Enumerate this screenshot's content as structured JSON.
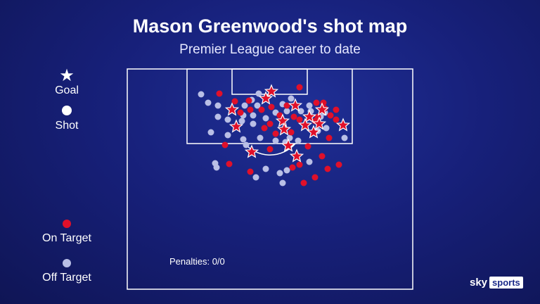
{
  "title": "Mason Greenwood's shot map",
  "subtitle": "Premier League career to date",
  "legend": {
    "goal_label": "Goal",
    "shot_label": "Shot",
    "on_target_label": "On Target",
    "off_target_label": "Off Target"
  },
  "penalties_text": "Penalties: 0/0",
  "brand": {
    "sky": "sky",
    "sports": "sports"
  },
  "colors": {
    "on_target": "#e0102a",
    "off_target": "#b9bfe6",
    "goal_fill": "#e0102a",
    "line": "#ffffff"
  },
  "chart_data": {
    "type": "scatter",
    "title": "Mason Greenwood's shot map",
    "subtitle": "Premier League career to date",
    "penalties": "0/0",
    "series": [
      {
        "name": "Goal",
        "points": [
          [
            386,
            130
          ],
          [
            378,
            140
          ],
          [
            330,
            156
          ],
          [
            420,
            150
          ],
          [
            458,
            156
          ],
          [
            440,
            166
          ],
          [
            402,
            172
          ],
          [
            434,
            178
          ],
          [
            454,
            176
          ],
          [
            488,
            178
          ],
          [
            336,
            180
          ],
          [
            404,
            184
          ],
          [
            446,
            188
          ],
          [
            410,
            207
          ],
          [
            358,
            216
          ],
          [
            422,
            222
          ]
        ]
      },
      {
        "name": "On Target",
        "points": [
          [
            312,
            133
          ],
          [
            426,
            124
          ],
          [
            334,
            144
          ],
          [
            354,
            143
          ],
          [
            386,
            152
          ],
          [
            408,
            150
          ],
          [
            450,
            146
          ],
          [
            460,
            146
          ],
          [
            462,
            154
          ],
          [
            478,
            156
          ],
          [
            356,
            156
          ],
          [
            372,
            156
          ],
          [
            342,
            160
          ],
          [
            398,
            164
          ],
          [
            418,
            166
          ],
          [
            470,
            164
          ],
          [
            478,
            170
          ],
          [
            384,
            176
          ],
          [
            426,
            170
          ],
          [
            452,
            166
          ],
          [
            448,
            172
          ],
          [
            376,
            182
          ],
          [
            392,
            190
          ],
          [
            414,
            188
          ],
          [
            468,
            196
          ],
          [
            320,
            206
          ],
          [
            384,
            212
          ],
          [
            438,
            208
          ],
          [
            458,
            222
          ],
          [
            426,
            234
          ],
          [
            416,
            238
          ],
          [
            326,
            233
          ],
          [
            482,
            234
          ],
          [
            466,
            240
          ],
          [
            448,
            252
          ],
          [
            432,
            260
          ],
          [
            356,
            244
          ]
        ]
      },
      {
        "name": "Off Target",
        "points": [
          [
            286,
            134
          ],
          [
            296,
            146
          ],
          [
            368,
            133
          ],
          [
            358,
            142
          ],
          [
            366,
            150
          ],
          [
            348,
            150
          ],
          [
            310,
            150
          ],
          [
            324,
            170
          ],
          [
            310,
            166
          ],
          [
            346,
            164
          ],
          [
            360,
            164
          ],
          [
            378,
            168
          ],
          [
            414,
            140
          ],
          [
            402,
            148
          ],
          [
            392,
            160
          ],
          [
            408,
            158
          ],
          [
            428,
            158
          ],
          [
            440,
            150
          ],
          [
            442,
            158
          ],
          [
            456,
            166
          ],
          [
            462,
            160
          ],
          [
            452,
            186
          ],
          [
            464,
            182
          ],
          [
            490,
            196
          ],
          [
            360,
            176
          ],
          [
            344,
            172
          ],
          [
            324,
            192
          ],
          [
            346,
            198
          ],
          [
            370,
            196
          ],
          [
            392,
            200
          ],
          [
            406,
            202
          ],
          [
            412,
            196
          ],
          [
            424,
            200
          ],
          [
            350,
            206
          ],
          [
            440,
            230
          ],
          [
            408,
            242
          ],
          [
            398,
            246
          ],
          [
            378,
            240
          ],
          [
            364,
            252
          ],
          [
            402,
            260
          ],
          [
            306,
            232
          ],
          [
            308,
            238
          ],
          [
            300,
            188
          ]
        ]
      }
    ],
    "legend": [
      "Goal",
      "Shot",
      "On Target",
      "Off Target"
    ]
  }
}
